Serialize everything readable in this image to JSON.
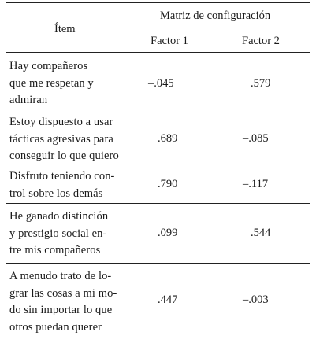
{
  "table": {
    "header": {
      "item_label": "Ítem",
      "group_label": "Matriz de configuración",
      "factor1_label": "Factor 1",
      "factor2_label": "Factor 2"
    },
    "rows": [
      {
        "lines": [
          "Hay compañeros",
          "que me respetan y",
          "admiran"
        ],
        "factor1": "–.045",
        "factor2": ".579"
      },
      {
        "lines": [
          "Estoy dispuesto a usar",
          "tácticas agresivas para",
          "conseguir lo que quiero"
        ],
        "factor1": ".689",
        "factor2": "–.085"
      },
      {
        "lines": [
          "Disfruto teniendo con-",
          "trol sobre los demás"
        ],
        "factor1": ".790",
        "factor2": "–.117"
      },
      {
        "lines": [
          "He ganado distinción",
          "y prestigio social en-",
          "tre mis compañeros"
        ],
        "factor1": ".099",
        "factor2": ".544"
      },
      {
        "lines": [
          "A menudo trato de lo-",
          "grar las cosas a mi mo-",
          "do sin importar lo que",
          "otros puedan querer"
        ],
        "factor1": ".447",
        "factor2": "–.003"
      }
    ]
  }
}
